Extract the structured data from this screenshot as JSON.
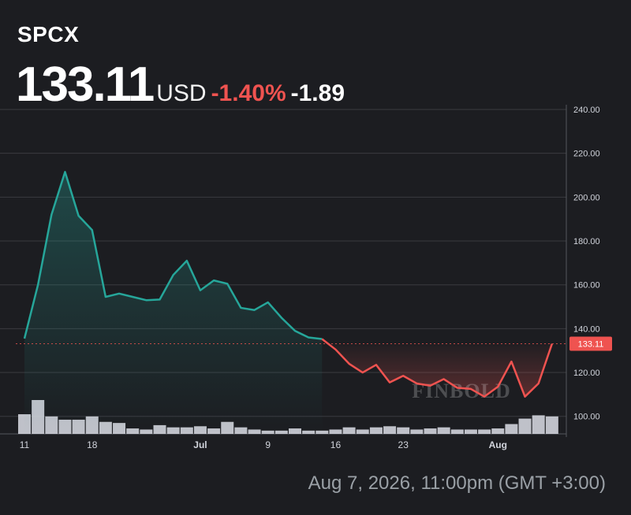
{
  "header": {
    "ticker": "SPCX",
    "price": "133.11",
    "currency": "USD",
    "change_percent": "-1.40%",
    "change_abs": "-1.89"
  },
  "footer": {
    "timestamp": "Aug 7, 2026, 11:00pm (GMT +3:00)"
  },
  "watermark": "FINBOLD",
  "colors": {
    "up": "#26a69a",
    "down": "#ef5350",
    "background": "#1c1d21",
    "grid": "#3a3b40",
    "volume": "#d1d4dc"
  },
  "chart_data": {
    "type": "line",
    "price_label": "133.11",
    "ylim": [
      92,
      240
    ],
    "y_ticks": [
      "100.00",
      "120.00",
      "140.00",
      "160.00",
      "180.00",
      "200.00",
      "220.00",
      "240.00"
    ],
    "x_ticks": [
      {
        "index": 0,
        "label": "11"
      },
      {
        "index": 5,
        "label": "18"
      },
      {
        "index": 13,
        "label": "Jul"
      },
      {
        "index": 18,
        "label": "9"
      },
      {
        "index": 23,
        "label": "16"
      },
      {
        "index": 28,
        "label": "23"
      },
      {
        "index": 35,
        "label": "Aug"
      }
    ],
    "series": [
      {
        "values": [
          135.5,
          160.0,
          192.0,
          211.5,
          191.5,
          185.0,
          154.5,
          156.0,
          154.5,
          153.0,
          153.3,
          164.5,
          171.0,
          157.5,
          162.0,
          160.5,
          149.5,
          148.5,
          152.0,
          145.0,
          139.0,
          136.0,
          135.3,
          130.5,
          124.0,
          120.0,
          123.5,
          115.5,
          118.5,
          115.0,
          114.0,
          117.0,
          113.0,
          112.5,
          109.0,
          113.5,
          125.0,
          109.0,
          115.0,
          133.11
        ]
      }
    ],
    "volume": [
      18,
      31,
      16,
      13,
      13,
      16,
      11,
      10,
      5,
      4,
      8,
      6,
      6,
      7,
      5,
      11,
      6,
      4,
      3,
      3,
      5,
      3,
      3,
      4,
      6,
      4,
      6,
      7,
      6,
      4,
      5,
      6,
      4,
      4,
      4,
      5,
      9,
      14,
      17,
      16
    ]
  }
}
